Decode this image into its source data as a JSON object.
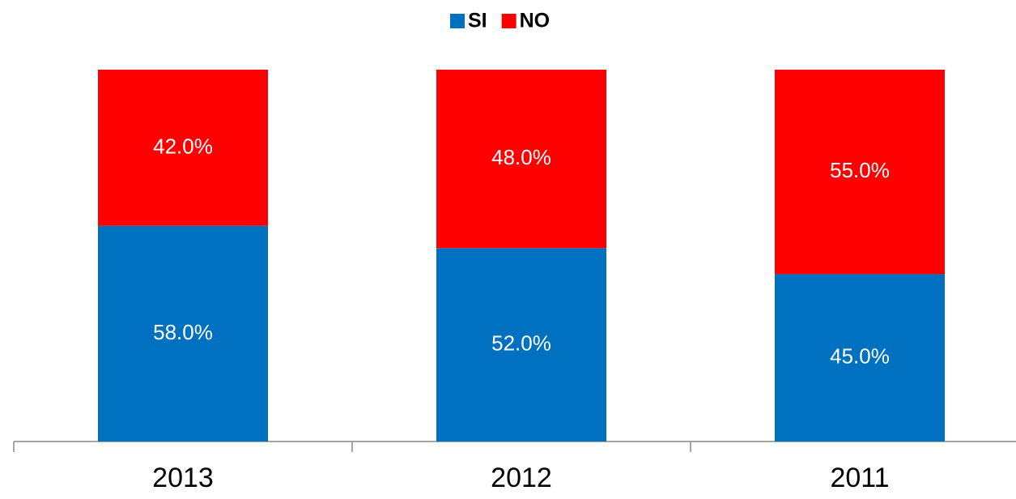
{
  "chart_data": {
    "type": "stacked_bar",
    "categories": [
      "2013",
      "2012",
      "2011"
    ],
    "series": [
      {
        "name": "SI",
        "color": "#0070c0",
        "values": [
          58,
          52,
          45
        ],
        "value_labels": [
          "58.0%",
          "52.0%",
          "45.0%"
        ]
      },
      {
        "name": "NO",
        "color": "#ff0000",
        "values": [
          42,
          48,
          55
        ],
        "value_labels": [
          "42.0%",
          "48.0%",
          "55.0%"
        ]
      }
    ],
    "legend": "top"
  }
}
